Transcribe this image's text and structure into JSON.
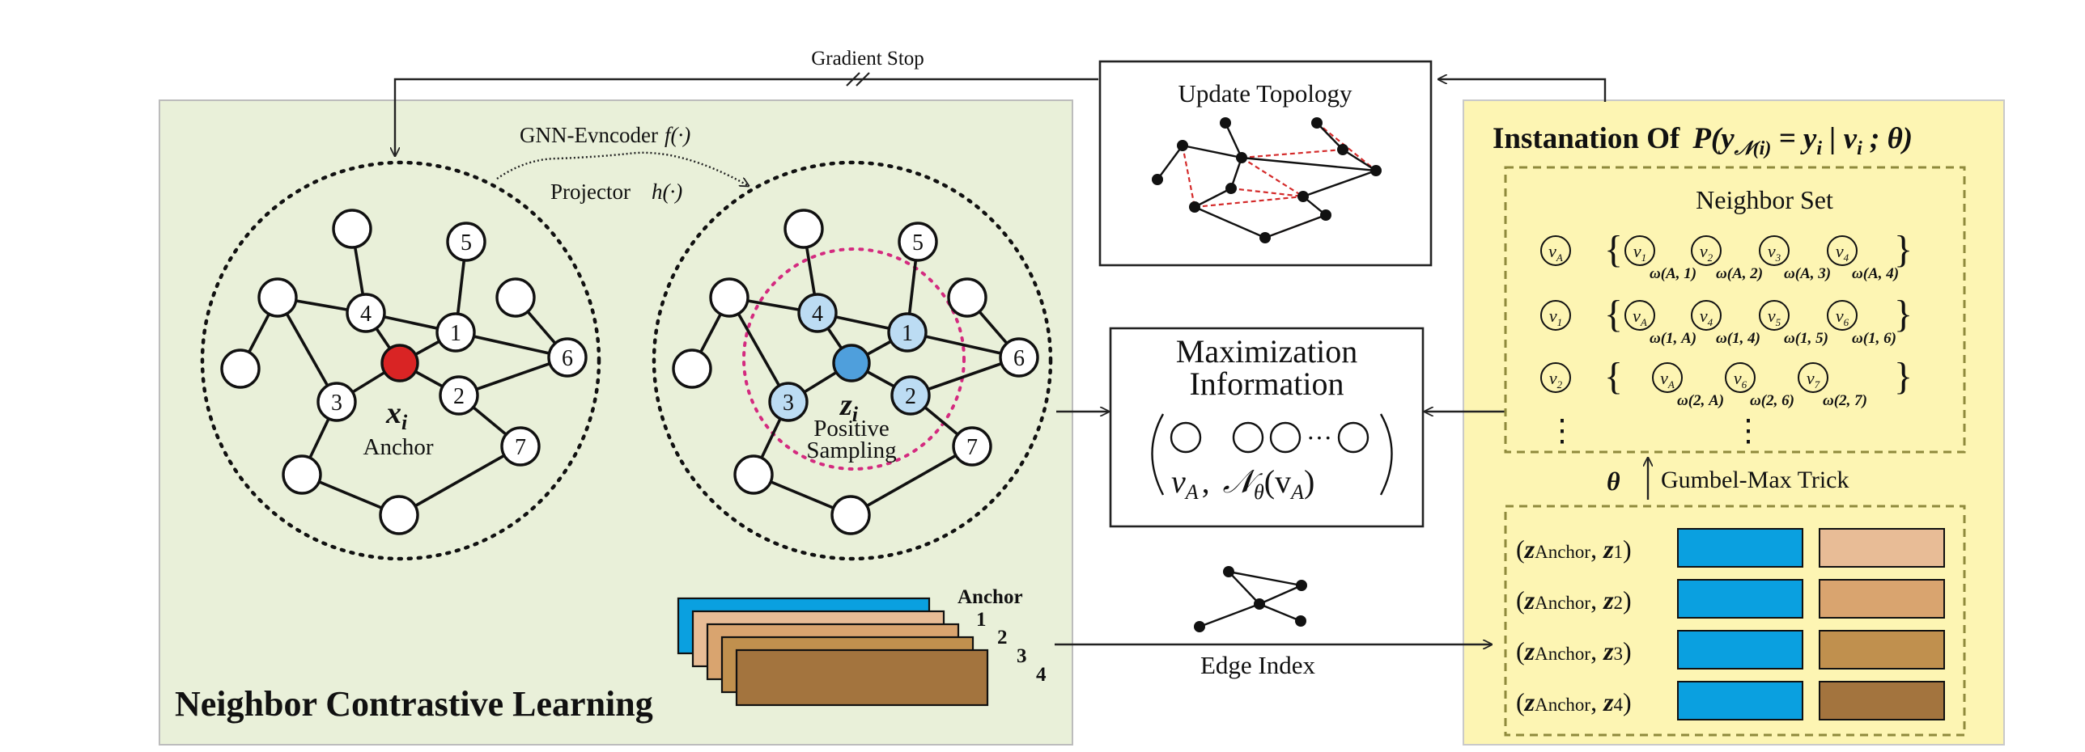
{
  "colors": {
    "left_panel_fill": "#e9f0d9",
    "left_panel_stroke": "#bcbcbc",
    "right_panel_fill": "#fdf5b3",
    "right_panel_stroke": "#c9c9c9",
    "dashed_box": "#8f8a3c",
    "anchor_node": "#d92424",
    "positive_node": "#4f9fdc",
    "positive_neighbor": "#bcdcf3",
    "sampling_ring": "#d42a7f",
    "topology_edge": "#d42a2a",
    "bar_blue": "#0aa0e0",
    "bar_1": "#e8bc96",
    "bar_2": "#d9a46f",
    "bar_3": "#c0904e",
    "bar_4": "#a3743e"
  },
  "top": {
    "gradient_stop": "Gradient Stop"
  },
  "left_panel": {
    "title": "Neighbor Contrastive Learning",
    "encoder_label": "GNN-Evncoder",
    "encoder_fn": "f(·)",
    "projector_label": "Projector",
    "projector_fn": "h(·)",
    "graph_left": {
      "anchor_symbol": "x",
      "anchor_sub": "i",
      "anchor_label": "Anchor",
      "node_labels": [
        "1",
        "2",
        "3",
        "4",
        "5",
        "6",
        "7"
      ]
    },
    "graph_right": {
      "symbol": "z",
      "symbol_sub": "i",
      "positive_label": "Positive",
      "sampling_label": "Sampling",
      "node_labels": [
        "1",
        "2",
        "3",
        "4",
        "5",
        "6",
        "7"
      ]
    },
    "stack": {
      "anchor_label": "Anchor",
      "indices": [
        "1",
        "2",
        "3",
        "4"
      ]
    }
  },
  "center": {
    "update_topology": "Update Topology",
    "maximization_line1": "Maximization",
    "maximization_line2": "Information",
    "v_symbol": "v",
    "v_sub": "A",
    "comma": ",",
    "n_symbol": "𝒩",
    "theta_sub": "θ",
    "n_arg": "(v",
    "n_arg_sub": "A",
    "n_arg_close": ")",
    "dots": "···",
    "edge_index": "Edge Index"
  },
  "right_panel": {
    "title_prefix": "Instanation Of",
    "title_math": "P(y",
    "title_sub": "𝒩(i)",
    "title_rest": " = y",
    "title_rest_sub": "i",
    "title_tail": " | v",
    "title_tail_sub": "i",
    "title_end": " ; θ)",
    "neighbor_set_title": "Neighbor Set",
    "rows": [
      {
        "head": "v",
        "head_sub": "A",
        "items": [
          {
            "v": "v",
            "sub": "1",
            "w": "ω(A, 1)"
          },
          {
            "v": "v",
            "sub": "2",
            "w": "ω(A, 2)"
          },
          {
            "v": "v",
            "sub": "3",
            "w": "ω(A, 3)"
          },
          {
            "v": "v",
            "sub": "4",
            "w": "ω(A, 4)"
          }
        ]
      },
      {
        "head": "v",
        "head_sub": "1",
        "items": [
          {
            "v": "v",
            "sub": "A",
            "w": "ω(1, A)"
          },
          {
            "v": "v",
            "sub": "4",
            "w": "ω(1, 4)"
          },
          {
            "v": "v",
            "sub": "5",
            "w": "ω(1, 5)"
          },
          {
            "v": "v",
            "sub": "6",
            "w": "ω(1, 6)"
          }
        ]
      },
      {
        "head": "v",
        "head_sub": "2",
        "items": [
          {
            "v": "v",
            "sub": "A",
            "w": "ω(2, A)"
          },
          {
            "v": "v",
            "sub": "6",
            "w": "ω(2, 6)"
          },
          {
            "v": "v",
            "sub": "7",
            "w": "ω(2, 7)"
          }
        ]
      }
    ],
    "vdots": "⋮",
    "brace_open": "{",
    "brace_close": "}",
    "theta": "θ",
    "gumbel": "Gumbel-Max Trick",
    "pairs": [
      {
        "open": "(",
        "z1": "z",
        "sub1": "Anchor",
        "sep": ", ",
        "z2": "z",
        "sub2": "1",
        "close": ")"
      },
      {
        "open": "(",
        "z1": "z",
        "sub1": "Anchor",
        "sep": ", ",
        "z2": "z",
        "sub2": "2",
        "close": ")"
      },
      {
        "open": "(",
        "z1": "z",
        "sub1": "Anchor",
        "sep": ", ",
        "z2": "z",
        "sub2": "3",
        "close": ")"
      },
      {
        "open": "(",
        "z1": "z",
        "sub1": "Anchor",
        "sep": ", ",
        "z2": "z",
        "sub2": "4",
        "close": ")"
      }
    ]
  }
}
